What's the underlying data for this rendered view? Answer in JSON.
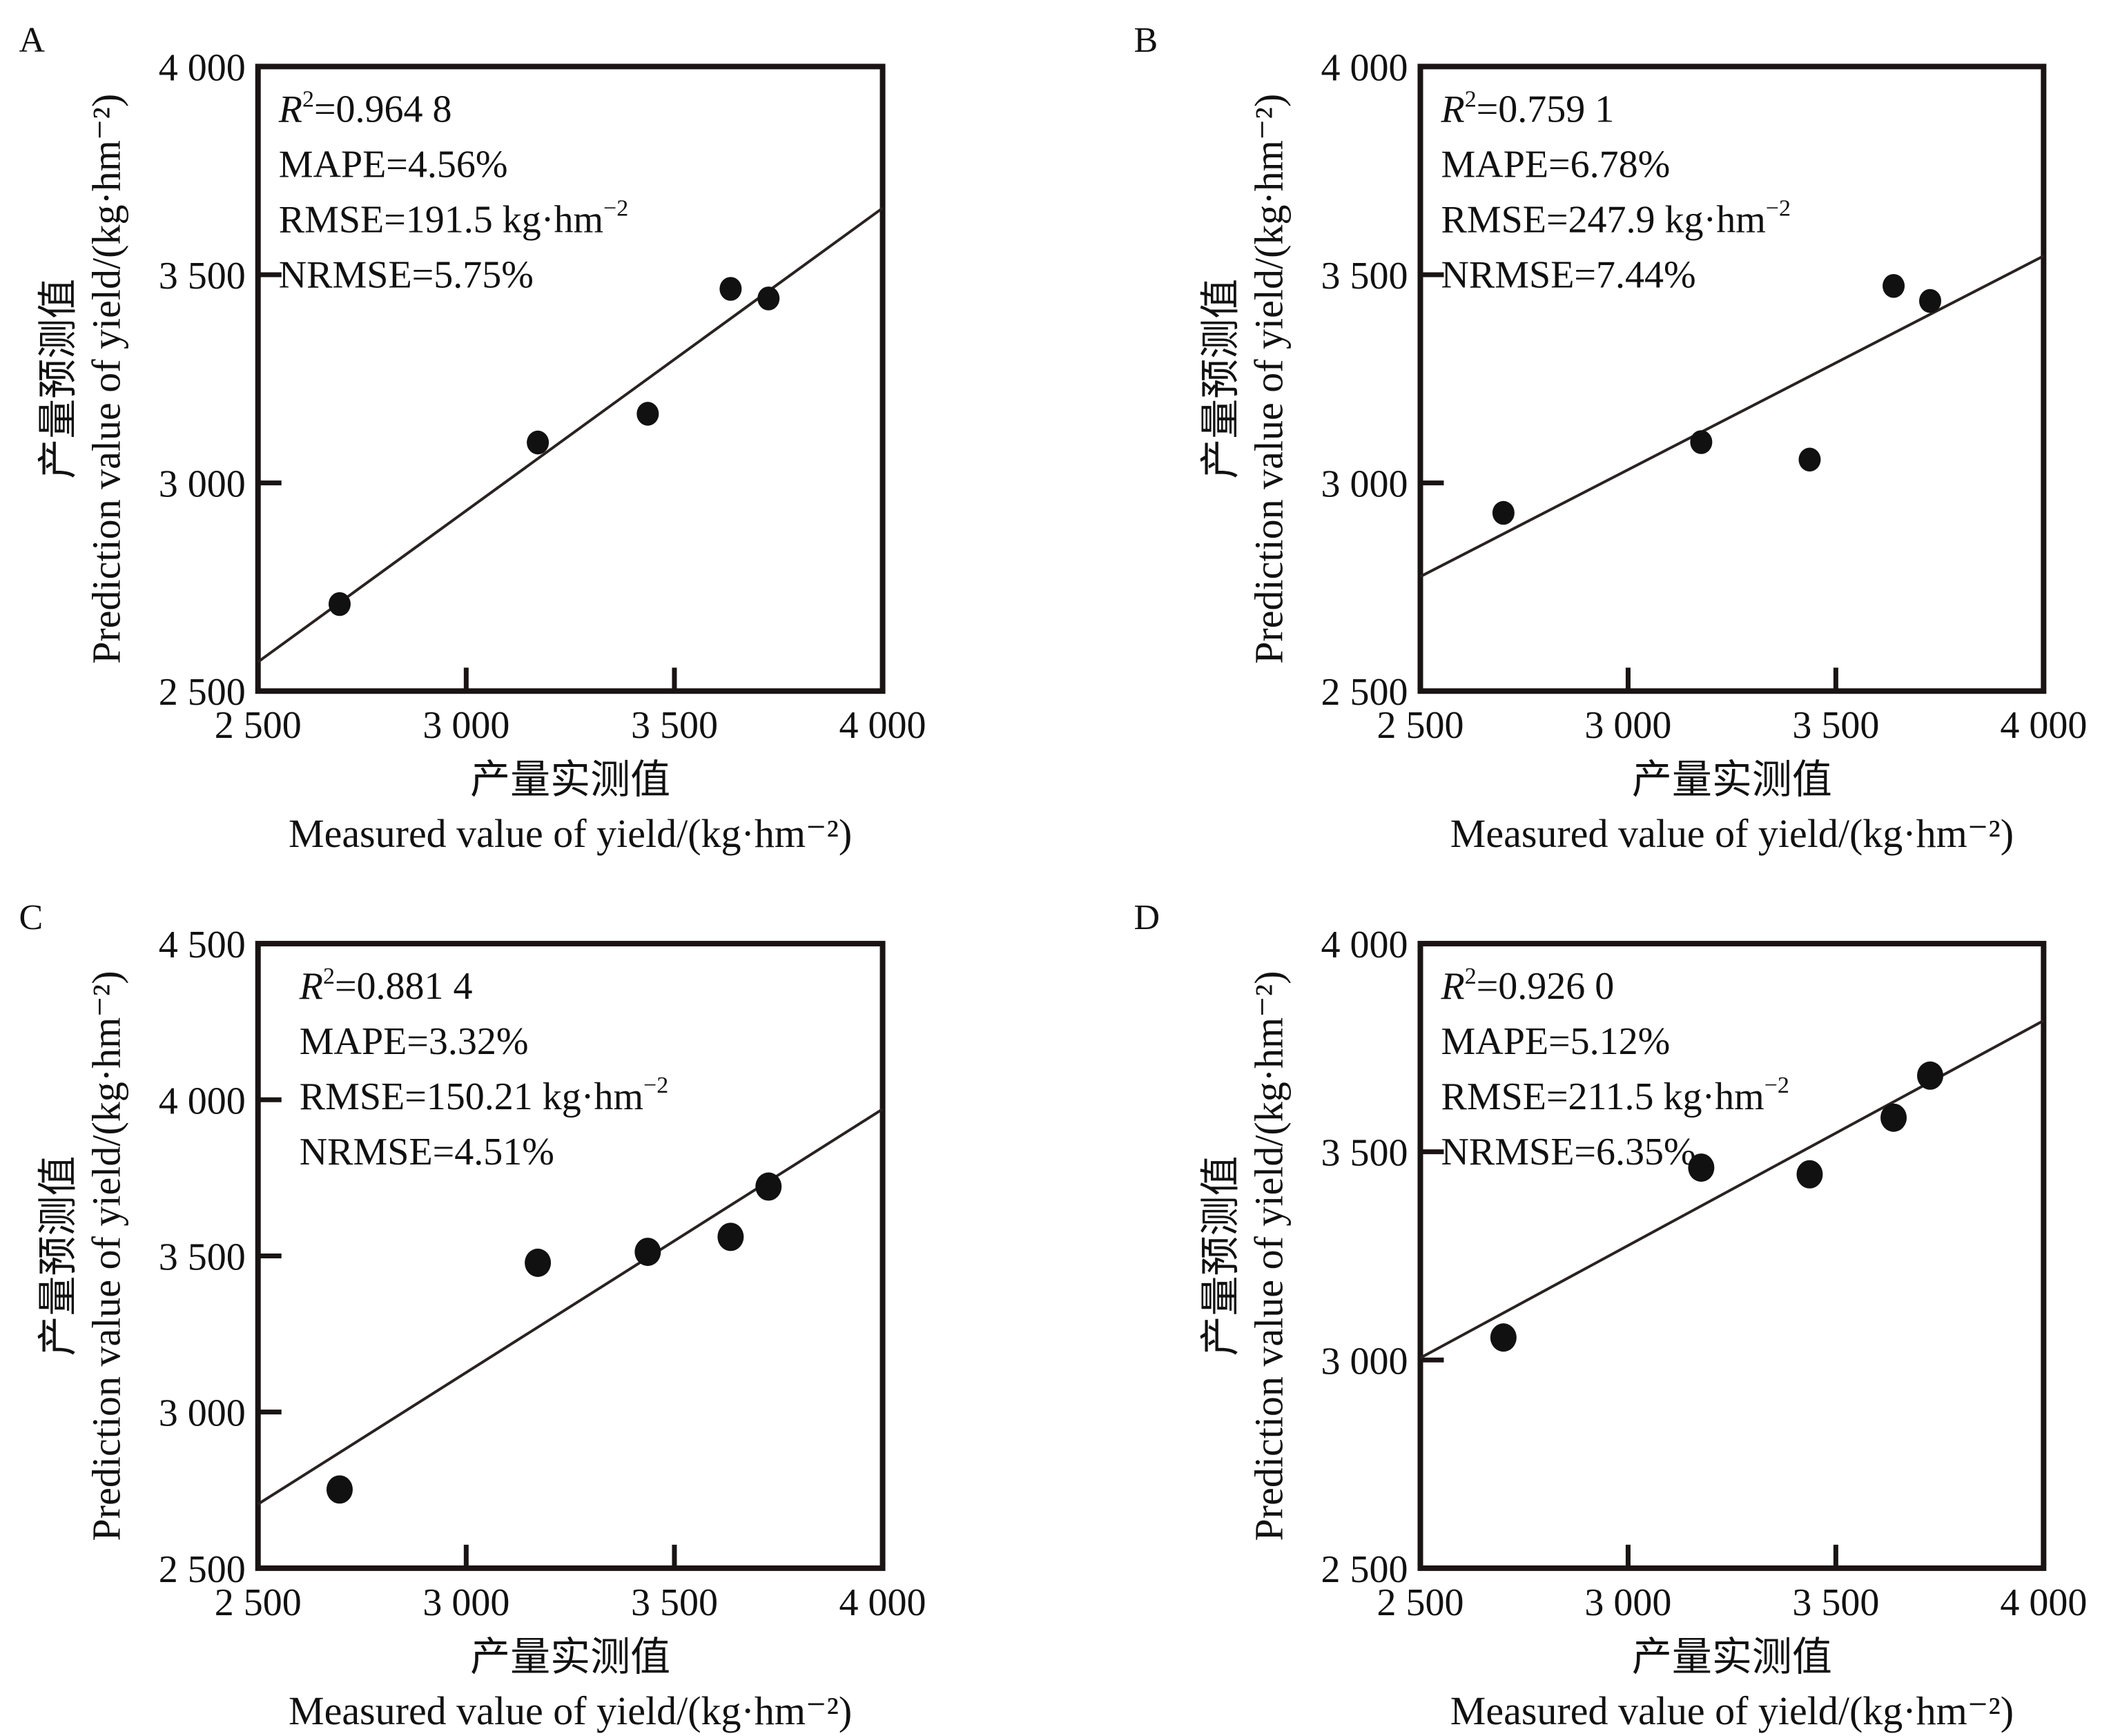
{
  "chart_data": [
    {
      "panel": "A",
      "type": "scatter",
      "xlabel_cn": "产量实测值",
      "xlabel_en": "Measured value of yield/(kg·hm⁻²)",
      "ylabel_cn": "产量预测值",
      "ylabel_en": "Prediction value of yield/(kg·hm⁻²)",
      "xlim": [
        2500,
        4000
      ],
      "ylim": [
        2500,
        4000
      ],
      "xticks": [
        2500,
        3000,
        3500,
        4000
      ],
      "xtick_labels": [
        "2 500",
        "3 000",
        "3 500",
        "4 000"
      ],
      "yticks": [
        2500,
        3000,
        3500,
        4000
      ],
      "ytick_labels": [
        "2 500",
        "3 000",
        "3 500",
        "4 000"
      ],
      "points": [
        {
          "x": 2696,
          "y": 2709
        },
        {
          "x": 3172,
          "y": 3097
        },
        {
          "x": 3436,
          "y": 3166
        },
        {
          "x": 3635,
          "y": 3466
        },
        {
          "x": 3726,
          "y": 3443
        }
      ],
      "fit_line": {
        "x": [
          2500,
          4000
        ],
        "y": [
          2570,
          3660
        ]
      },
      "stats": {
        "r2_label": "R",
        "r2_sup": "2",
        "r2_value": "=0.964 8",
        "mape": "MAPE=4.56%",
        "rmse": "RMSE=191.5 kg·hm",
        "rmse_sup": "−2",
        "nrmse": "NRMSE=5.75%"
      },
      "grid": false
    },
    {
      "panel": "B",
      "type": "scatter",
      "xlabel_cn": "产量实测值",
      "xlabel_en": "Measured value of yield/(kg·hm⁻²)",
      "ylabel_cn": "产量预测值",
      "ylabel_en": "Prediction value of yield/(kg·hm⁻²)",
      "xlim": [
        2500,
        4000
      ],
      "ylim": [
        2500,
        4000
      ],
      "xticks": [
        2500,
        3000,
        3500,
        4000
      ],
      "xtick_labels": [
        "2 500",
        "3 000",
        "3 500",
        "4 000"
      ],
      "yticks": [
        2500,
        3000,
        3500,
        4000
      ],
      "ytick_labels": [
        "2 500",
        "3 000",
        "3 500",
        "4 000"
      ],
      "points": [
        {
          "x": 2700,
          "y": 2928
        },
        {
          "x": 3176,
          "y": 3098
        },
        {
          "x": 3437,
          "y": 3056
        },
        {
          "x": 3639,
          "y": 3473
        },
        {
          "x": 3727,
          "y": 3437
        }
      ],
      "fit_line": {
        "x": [
          2500,
          4000
        ],
        "y": [
          2775,
          3545
        ]
      },
      "stats": {
        "r2_label": "R",
        "r2_sup": "2",
        "r2_value": "=0.759 1",
        "mape": "MAPE=6.78%",
        "rmse": "RMSE=247.9 kg·hm",
        "rmse_sup": "−2",
        "nrmse": "NRMSE=7.44%"
      },
      "grid": false
    },
    {
      "panel": "C",
      "type": "scatter",
      "xlabel_cn": "产量实测值",
      "xlabel_en": "Measured value of yield/(kg·hm⁻²)",
      "ylabel_cn": "产量预测值",
      "ylabel_en": "Prediction value of yield/(kg·hm⁻²)",
      "xlim": [
        2500,
        4000
      ],
      "ylim": [
        2500,
        4500
      ],
      "xticks": [
        2500,
        3000,
        3500,
        4000
      ],
      "xtick_labels": [
        "2 500",
        "3 000",
        "3 500",
        "4 000"
      ],
      "yticks": [
        2500,
        3000,
        3500,
        4000,
        4500
      ],
      "ytick_labels": [
        "2 500",
        "3 000",
        "3 500",
        "4 000",
        "4 500"
      ],
      "points": [
        {
          "x": 2696,
          "y": 2752
        },
        {
          "x": 3172,
          "y": 3478
        },
        {
          "x": 3436,
          "y": 3513
        },
        {
          "x": 3635,
          "y": 3561
        },
        {
          "x": 3726,
          "y": 3722
        }
      ],
      "fit_line": {
        "x": [
          2500,
          4000
        ],
        "y": [
          2705,
          3970
        ]
      },
      "stats": {
        "r2_label": "R",
        "r2_sup": "2",
        "r2_value": "=0.881 4",
        "mape": "MAPE=3.32%",
        "rmse": "RMSE=150.21 kg·hm",
        "rmse_sup": "−2",
        "nrmse": "NRMSE=4.51%"
      },
      "grid": false
    },
    {
      "panel": "D",
      "type": "scatter",
      "xlabel_cn": "产量实测值",
      "xlabel_en": "Measured value of yield/(kg·hm⁻²)",
      "ylabel_cn": "产量预测值",
      "ylabel_en": "Prediction value of yield/(kg·hm⁻²)",
      "xlim": [
        2500,
        4000
      ],
      "ylim": [
        2500,
        4000
      ],
      "xticks": [
        2500,
        3000,
        3500,
        4000
      ],
      "xtick_labels": [
        "2 500",
        "3 000",
        "3 500",
        "4 000"
      ],
      "yticks": [
        2500,
        3000,
        3500,
        4000
      ],
      "ytick_labels": [
        "2 500",
        "3 000",
        "3 500",
        "4 000"
      ],
      "points": [
        {
          "x": 2700,
          "y": 3054
        },
        {
          "x": 3176,
          "y": 3462
        },
        {
          "x": 3437,
          "y": 3446
        },
        {
          "x": 3639,
          "y": 3582
        },
        {
          "x": 3727,
          "y": 3683
        }
      ],
      "fit_line": {
        "x": [
          2500,
          4000
        ],
        "y": [
          3005,
          3815
        ]
      },
      "stats": {
        "r2_label": "R",
        "r2_sup": "2",
        "r2_value": "=0.926 0",
        "mape": "MAPE=5.12%",
        "rmse": "RMSE=211.5 kg·hm",
        "rmse_sup": "−2",
        "nrmse": "NRMSE=6.35%"
      },
      "grid": false
    }
  ]
}
